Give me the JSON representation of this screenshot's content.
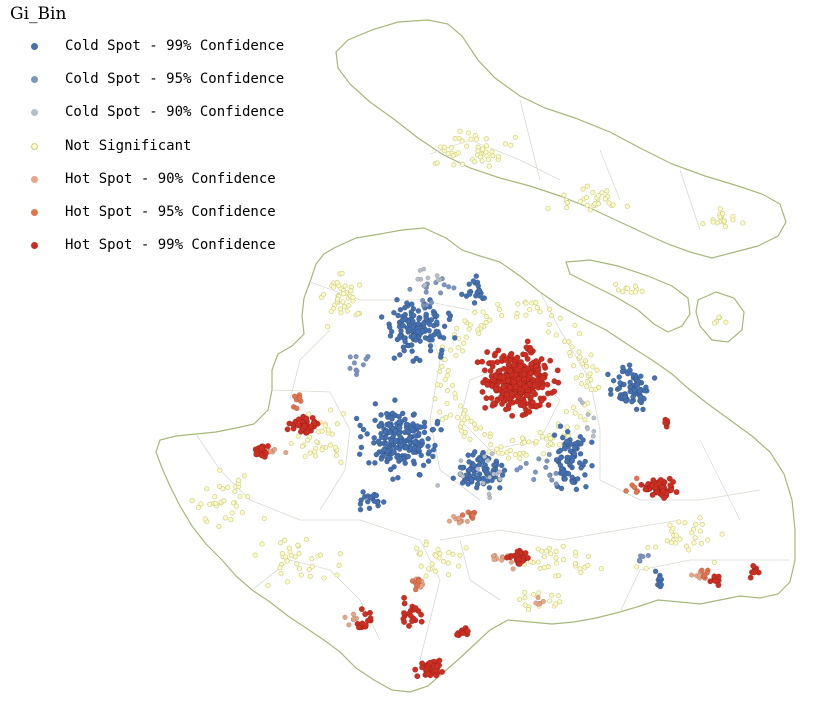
{
  "legend": {
    "title": "Gi_Bin",
    "items": [
      {
        "label": "Cold Spot - 99% Confidence",
        "color": "#4470b0"
      },
      {
        "label": "Cold Spot - 95% Confidence",
        "color": "#7b95c0"
      },
      {
        "label": "Cold Spot - 90% Confidence",
        "color": "#b6bec9"
      },
      {
        "label": "Not Significant",
        "color": "#fdfbc8"
      },
      {
        "label": "Hot Spot - 90% Confidence",
        "color": "#e8a585"
      },
      {
        "label": "Hot Spot - 95% Confidence",
        "color": "#e2734f"
      },
      {
        "label": "Hot Spot - 99% Confidence",
        "color": "#cd2e22"
      }
    ]
  },
  "map": {
    "boundary_color": "#a6b87c",
    "district_line_color": "#d7dbd0",
    "land_fill": "#ffffff",
    "ns_stroke": "#cdd08a"
  }
}
